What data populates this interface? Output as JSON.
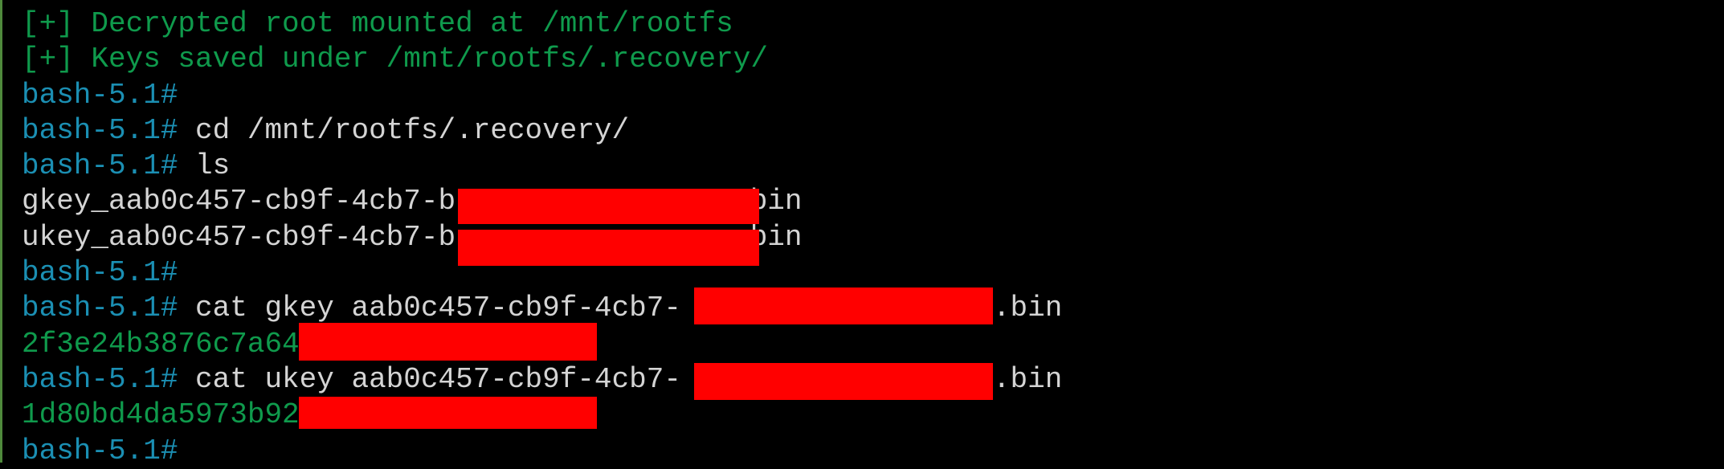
{
  "terminal": {
    "lines": [
      {
        "type": "status",
        "text": "[+] Decrypted root mounted at /mnt/rootfs"
      },
      {
        "type": "status",
        "text": "[+] Keys saved under /mnt/rootfs/.recovery/"
      },
      {
        "type": "prompt",
        "prompt": "bash-5.1#",
        "cmd": ""
      },
      {
        "type": "prompt",
        "prompt": "bash-5.1#",
        "cmd": " cd /mnt/rootfs/.recovery/"
      },
      {
        "type": "prompt",
        "prompt": "bash-5.1#",
        "cmd": " ls"
      },
      {
        "type": "output",
        "text": "gkey_aab0c457-cb9f-4cb7-b",
        "suffix": ".bin"
      },
      {
        "type": "output",
        "text": "ukey_aab0c457-cb9f-4cb7-b",
        "suffix": ".bin"
      },
      {
        "type": "prompt",
        "prompt": "bash-5.1#",
        "cmd": ""
      },
      {
        "type": "prompt",
        "prompt": "bash-5.1#",
        "cmd": " cat gkey aab0c457-cb9f-4cb7-",
        "suffix": ".bin"
      },
      {
        "type": "hex",
        "text": "2f3e24b3876c7a64"
      },
      {
        "type": "prompt",
        "prompt": "bash-5.1#",
        "cmd": " cat ukey aab0c457-cb9f-4cb7-",
        "suffix": ".bin"
      },
      {
        "type": "hex",
        "text": "1d80bd4da5973b92"
      },
      {
        "type": "prompt",
        "prompt": "bash-5.1#",
        "cmd": ""
      }
    ]
  },
  "colors": {
    "status": "#0f9a4c",
    "prompt": "#1b8fb3",
    "output": "#d4d4d4",
    "redaction": "#ff0000"
  }
}
